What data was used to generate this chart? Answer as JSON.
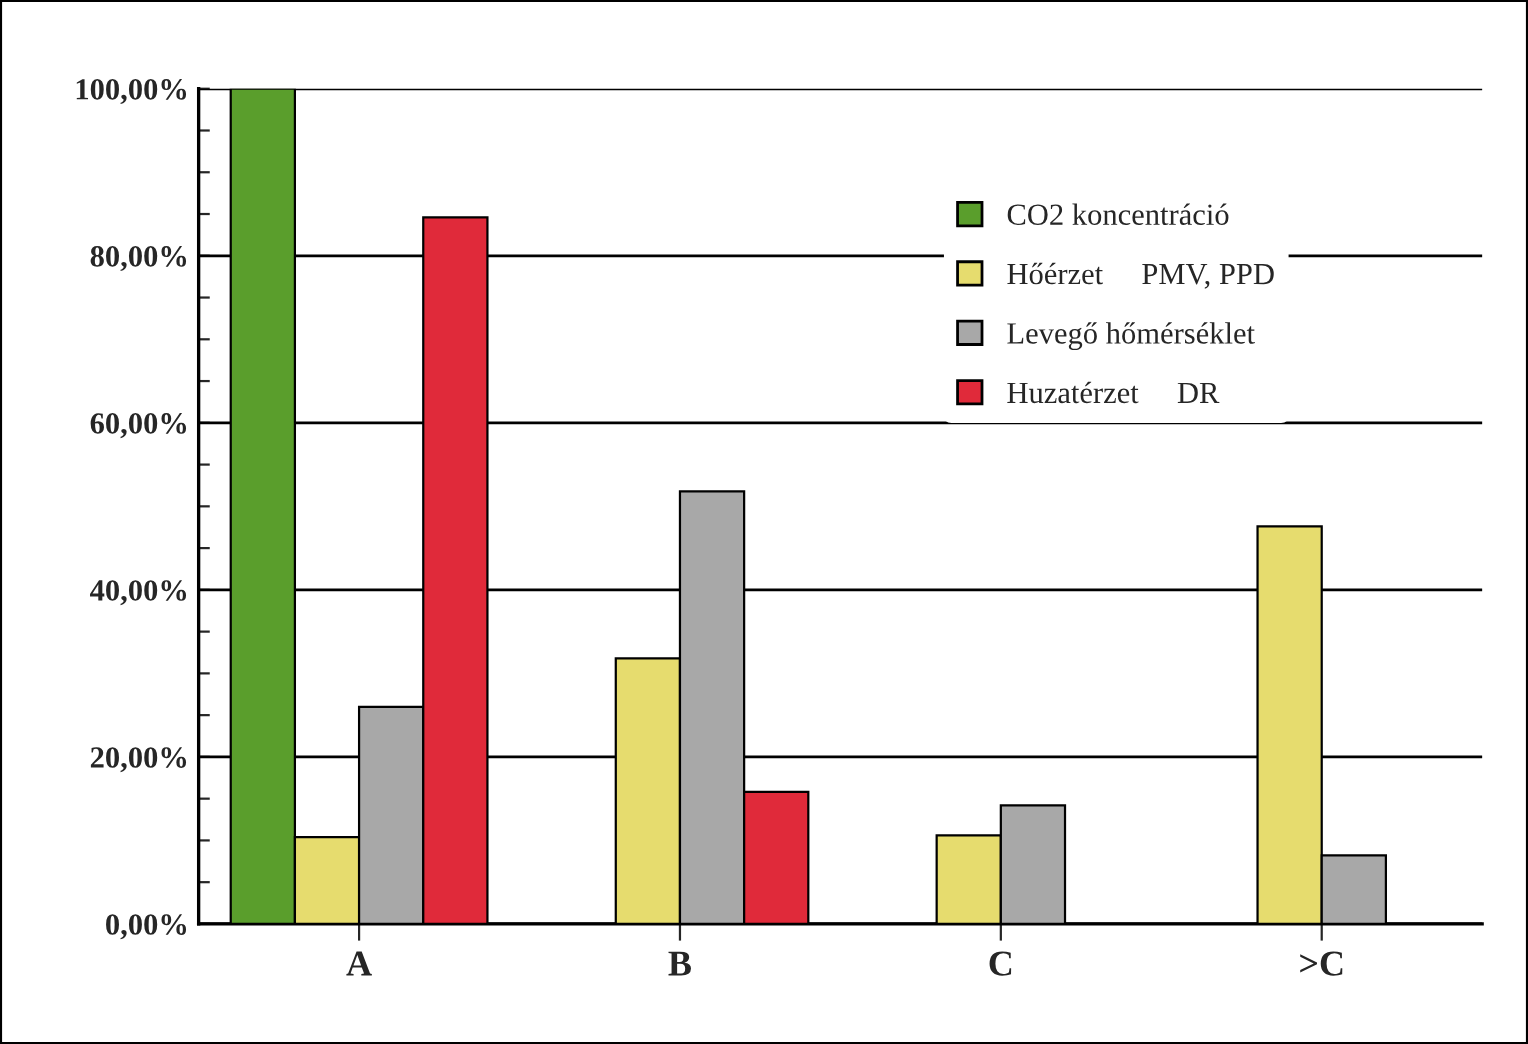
{
  "chart_data": {
    "type": "bar",
    "categories": [
      "A",
      "B",
      "C",
      ">C"
    ],
    "series": [
      {
        "name": "CO2 koncentráció",
        "color": "#5a9e2c",
        "values": [
          100,
          null,
          null,
          null
        ]
      },
      {
        "name": "Hőérzet     PMV, PPD",
        "color": "#e6dc6e",
        "values": [
          10.4,
          31.8,
          10.6,
          47.6
        ]
      },
      {
        "name": "Levegő hőmérséklet",
        "color": "#a8a8a8",
        "values": [
          26,
          51.8,
          14.2,
          8.2
        ]
      },
      {
        "name": "Huzatérzet     DR",
        "color": "#e02a3a",
        "values": [
          84.6,
          15.8,
          null,
          null
        ]
      }
    ],
    "ylim": [
      0,
      100
    ],
    "yticks": [
      {
        "value": 0,
        "label": "0,00%"
      },
      {
        "value": 5,
        "label": null
      },
      {
        "value": 10,
        "label": null
      },
      {
        "value": 15,
        "label": null
      },
      {
        "value": 20,
        "label": "20,00%"
      },
      {
        "value": 25,
        "label": null
      },
      {
        "value": 30,
        "label": null
      },
      {
        "value": 35,
        "label": null
      },
      {
        "value": 40,
        "label": "40,00%"
      },
      {
        "value": 45,
        "label": null
      },
      {
        "value": 50,
        "label": null
      },
      {
        "value": 55,
        "label": null
      },
      {
        "value": 60,
        "label": "60,00%"
      },
      {
        "value": 65,
        "label": null
      },
      {
        "value": 70,
        "label": null
      },
      {
        "value": 75,
        "label": null
      },
      {
        "value": 80,
        "label": "80,00%"
      },
      {
        "value": 85,
        "label": null
      },
      {
        "value": 90,
        "label": null
      },
      {
        "value": 95,
        "label": null
      },
      {
        "value": 100,
        "label": "100,00%"
      }
    ],
    "grid": "y",
    "legend": "right"
  }
}
